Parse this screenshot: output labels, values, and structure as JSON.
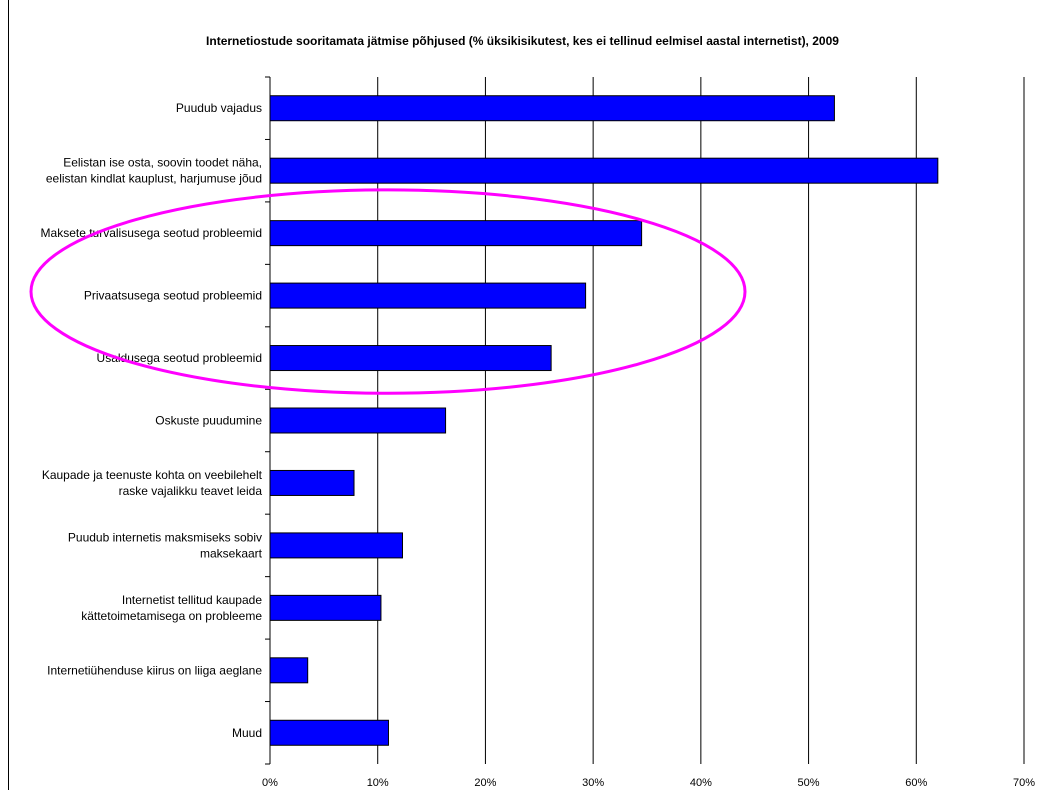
{
  "chart_data": {
    "type": "bar",
    "orientation": "horizontal",
    "title": "Internetiostude sooritamata jätmise põhjused (% üksikisikutest, kes ei tellinud eelmisel aastal internetist), 2009",
    "xlabel": "",
    "ylabel": "",
    "categories": [
      [
        "Puudub vajadus"
      ],
      [
        "Eelistan ise osta, soovin toodet näha,",
        "eelistan kindlat kauplust, harjumuse jõud"
      ],
      [
        "Maksete turvalisusega seotud probleemid"
      ],
      [
        "Privaatsusega seotud probleemid"
      ],
      [
        "Usaldusega seotud probleemid"
      ],
      [
        "Oskuste puudumine"
      ],
      [
        "Kaupade ja teenuste kohta on veebilehelt",
        "raske vajalikku teavet leida"
      ],
      [
        "Puudub internetis maksmiseks sobiv",
        "maksekaart"
      ],
      [
        "Internetist tellitud kaupade",
        "kättetoimetamisega on probleeme"
      ],
      [
        "Internetiühenduse kiirus on liiga aeglane"
      ],
      [
        "Muud"
      ]
    ],
    "values": [
      52.4,
      62.0,
      34.5,
      29.3,
      26.1,
      16.3,
      7.8,
      12.3,
      10.3,
      3.5,
      11.0
    ],
    "xlim": [
      0,
      70
    ],
    "xticks": [
      0,
      10,
      20,
      30,
      40,
      50,
      60,
      70
    ],
    "xtick_labels": [
      "0%",
      "10%",
      "20%",
      "30%",
      "40%",
      "50%",
      "60%",
      "70%"
    ],
    "grid": true,
    "legend": "none",
    "bar_color": "#0000ff",
    "bar_border_color": "#000000",
    "highlight_ellipse_color": "#ff00ff",
    "highlight_categories": [
      2,
      3,
      4
    ]
  }
}
